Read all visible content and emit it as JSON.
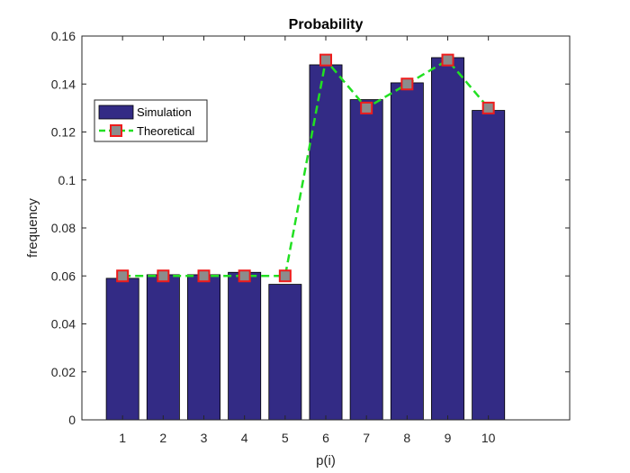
{
  "chart_data": {
    "type": "bar",
    "title": "Probability",
    "xlabel": "p(i)",
    "ylabel": "frequency",
    "categories": [
      "1",
      "2",
      "3",
      "4",
      "5",
      "6",
      "7",
      "8",
      "9",
      "10"
    ],
    "x": [
      1,
      2,
      3,
      4,
      5,
      6,
      7,
      8,
      9,
      10
    ],
    "xlim": [
      0,
      12
    ],
    "ylim": [
      0,
      0.16
    ],
    "yticks": [
      "0",
      "0.02",
      "0.04",
      "0.06",
      "0.08",
      "0.1",
      "0.12",
      "0.14",
      "0.16"
    ],
    "ytick_values": [
      0,
      0.02,
      0.04,
      0.06,
      0.08,
      0.1,
      0.12,
      0.14,
      0.16
    ],
    "grid": false,
    "legend_position": "top-left",
    "series": [
      {
        "name": "Simulation",
        "kind": "bar",
        "values": [
          0.059,
          0.0605,
          0.0605,
          0.0615,
          0.0565,
          0.148,
          0.1335,
          0.1405,
          0.151,
          0.129
        ],
        "color": "#332b85"
      },
      {
        "name": "Theoretical",
        "kind": "line",
        "values": [
          0.06,
          0.06,
          0.06,
          0.06,
          0.06,
          0.15,
          0.13,
          0.14,
          0.15,
          0.13
        ],
        "color": "#22e022",
        "line_style": "dashed",
        "marker": "square",
        "marker_face": "#8c8c8c",
        "marker_edge": "#ee1c1c"
      }
    ]
  }
}
